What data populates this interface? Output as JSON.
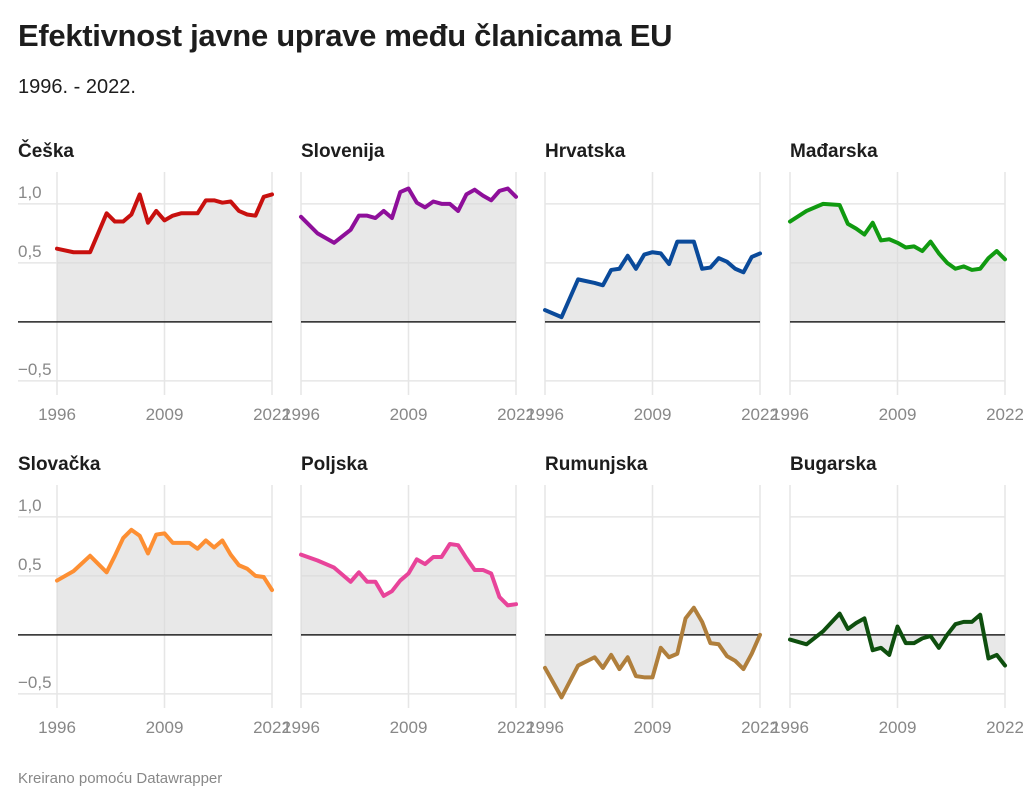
{
  "header": {
    "title": "Efektivnost javne uprave među članicama EU",
    "subtitle": "1996. - 2022."
  },
  "footer": {
    "credit": "Kreirano pomoću Datawrapper"
  },
  "chart_data": {
    "type": "area",
    "title": "Efektivnost javne uprave među članicama EU",
    "subtitle": "1996. - 2022.",
    "x": [
      1996,
      1998,
      2000,
      2002,
      2003,
      2004,
      2005,
      2006,
      2007,
      2008,
      2009,
      2010,
      2011,
      2012,
      2013,
      2014,
      2015,
      2016,
      2017,
      2018,
      2019,
      2020,
      2021,
      2022
    ],
    "x_ticks": [
      1996,
      2009,
      2022
    ],
    "x_tick_labels": [
      "1996",
      "2009",
      "2022"
    ],
    "y_ticks": [
      1.0,
      0.5,
      0,
      -0.5
    ],
    "y_tick_labels": [
      "1,0",
      "0,5",
      "",
      "−0,5"
    ],
    "ylim": [
      -0.62,
      1.27
    ],
    "xlim": [
      1996,
      2022
    ],
    "grid": true,
    "series": [
      {
        "name": "Češka",
        "color": "#c8100e",
        "values": [
          0.62,
          0.59,
          0.59,
          0.92,
          0.85,
          0.85,
          0.91,
          1.08,
          0.84,
          0.94,
          0.86,
          0.9,
          0.92,
          0.92,
          0.92,
          1.03,
          1.03,
          1.01,
          1.02,
          0.94,
          0.91,
          0.9,
          1.06,
          1.08
        ]
      },
      {
        "name": "Slovenija",
        "color": "#8e0f9a",
        "values": [
          0.89,
          0.75,
          0.67,
          0.78,
          0.9,
          0.9,
          0.88,
          0.94,
          0.88,
          1.1,
          1.13,
          1.01,
          0.97,
          1.02,
          1.0,
          1.0,
          0.94,
          1.08,
          1.12,
          1.07,
          1.03,
          1.11,
          1.13,
          1.06
        ]
      },
      {
        "name": "Hrvatska",
        "color": "#0a4a9a",
        "values": [
          0.1,
          0.04,
          0.36,
          0.33,
          0.31,
          0.44,
          0.45,
          0.56,
          0.45,
          0.57,
          0.59,
          0.58,
          0.49,
          0.68,
          0.68,
          0.68,
          0.45,
          0.46,
          0.54,
          0.51,
          0.45,
          0.42,
          0.55,
          0.58
        ]
      },
      {
        "name": "Mađarska",
        "color": "#109a10",
        "values": [
          0.85,
          0.94,
          1.0,
          0.99,
          0.83,
          0.79,
          0.74,
          0.84,
          0.69,
          0.7,
          0.67,
          0.63,
          0.64,
          0.6,
          0.68,
          0.58,
          0.5,
          0.45,
          0.47,
          0.44,
          0.45,
          0.54,
          0.6,
          0.53
        ]
      },
      {
        "name": "Slovačka",
        "color": "#fd8f33",
        "values": [
          0.46,
          0.54,
          0.67,
          0.53,
          0.67,
          0.82,
          0.89,
          0.84,
          0.69,
          0.85,
          0.86,
          0.78,
          0.78,
          0.78,
          0.73,
          0.8,
          0.74,
          0.8,
          0.68,
          0.59,
          0.56,
          0.5,
          0.49,
          0.38
        ]
      },
      {
        "name": "Poljska",
        "color": "#e8449a",
        "values": [
          0.68,
          0.63,
          0.57,
          0.45,
          0.53,
          0.45,
          0.45,
          0.33,
          0.37,
          0.46,
          0.52,
          0.64,
          0.6,
          0.66,
          0.66,
          0.77,
          0.76,
          0.65,
          0.55,
          0.55,
          0.52,
          0.32,
          0.25,
          0.26
        ]
      },
      {
        "name": "Rumunjska",
        "color": "#b07f3c",
        "values": [
          -0.28,
          -0.53,
          -0.26,
          -0.19,
          -0.28,
          -0.17,
          -0.29,
          -0.19,
          -0.35,
          -0.36,
          -0.36,
          -0.11,
          -0.19,
          -0.16,
          0.14,
          0.23,
          0.11,
          -0.07,
          -0.08,
          -0.18,
          -0.22,
          -0.29,
          -0.16,
          0.0
        ]
      },
      {
        "name": "Bugarska",
        "color": "#0e4f0e",
        "values": [
          -0.04,
          -0.08,
          0.03,
          0.18,
          0.05,
          0.1,
          0.14,
          -0.13,
          -0.11,
          -0.17,
          0.07,
          -0.07,
          -0.07,
          -0.03,
          -0.01,
          -0.11,
          0.0,
          0.09,
          0.11,
          0.11,
          0.17,
          -0.2,
          -0.17,
          -0.26
        ]
      }
    ]
  }
}
